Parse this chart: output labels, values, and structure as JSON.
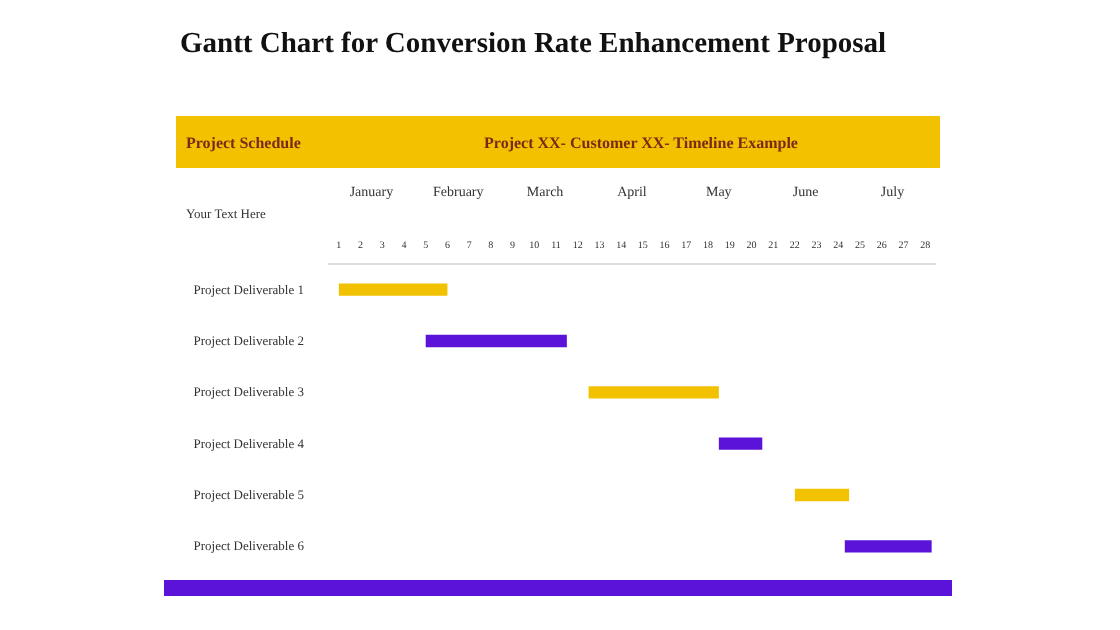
{
  "chart_data": {
    "type": "bar",
    "orientation": "horizontal",
    "title": "Gantt Chart for Conversion Rate Enhancement Proposal",
    "subtitle": "Project XX- Customer XX- Timeline Example",
    "annotations": [
      "Project Schedule",
      "Your Text Here",
      "January",
      "February",
      "March",
      "April",
      "May",
      "June",
      "July"
    ],
    "categories": [
      "Project Deliverable 1",
      "Project Deliverable 2",
      "Project Deliverable 3",
      "Project Deliverable 4",
      "Project Deliverable 5",
      "Project Deliverable 6"
    ],
    "base": [
      1,
      5,
      12.5,
      18.5,
      22,
      24.3
    ],
    "values": [
      5,
      6.5,
      6,
      2,
      2.5,
      4
    ],
    "colors": [
      "#f2c200",
      "#5b13d9",
      "#f2c200",
      "#5b13d9",
      "#f2c200",
      "#5b13d9"
    ],
    "xlim": [
      0.5,
      28.5
    ],
    "xticks": [
      1,
      2,
      3,
      4,
      5,
      6,
      7,
      8,
      9,
      10,
      11,
      12,
      13,
      14,
      15,
      16,
      17,
      18,
      19,
      20,
      21,
      22,
      23,
      24,
      25,
      26,
      27,
      28
    ]
  }
}
